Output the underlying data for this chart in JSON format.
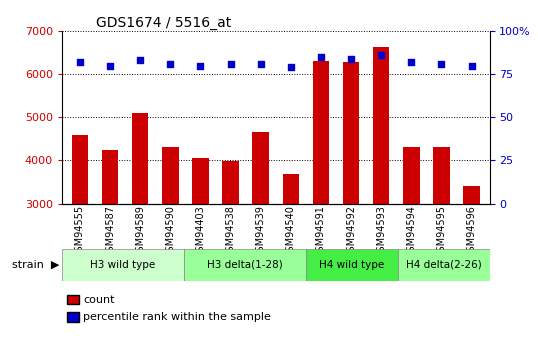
{
  "title": "GDS1674 / 5516_at",
  "samples": [
    "GSM94555",
    "GSM94587",
    "GSM94589",
    "GSM94590",
    "GSM94403",
    "GSM94538",
    "GSM94539",
    "GSM94540",
    "GSM94591",
    "GSM94592",
    "GSM94593",
    "GSM94594",
    "GSM94595",
    "GSM94596"
  ],
  "counts": [
    4600,
    4250,
    5100,
    4300,
    4050,
    3980,
    4650,
    3680,
    6300,
    6280,
    6620,
    4320,
    4320,
    3400
  ],
  "percentile_ranks": [
    82,
    80,
    83,
    81,
    80,
    81,
    81,
    79,
    85,
    84,
    86,
    82,
    81,
    80
  ],
  "ylim_left": [
    3000,
    7000
  ],
  "ylim_right": [
    0,
    100
  ],
  "yticks_left": [
    3000,
    4000,
    5000,
    6000,
    7000
  ],
  "yticks_right": [
    0,
    25,
    50,
    75,
    100
  ],
  "bar_color": "#cc0000",
  "dot_color": "#0000cc",
  "groups": [
    {
      "label": "H3 wild type",
      "indices": [
        0,
        1,
        2,
        3
      ],
      "color": "#ccffcc"
    },
    {
      "label": "H3 delta(1-28)",
      "indices": [
        4,
        5,
        6,
        7
      ],
      "color": "#99ff99"
    },
    {
      "label": "H4 wild type",
      "indices": [
        8,
        9,
        10
      ],
      "color": "#44ee44"
    },
    {
      "label": "H4 delta(2-26)",
      "indices": [
        11,
        12,
        13
      ],
      "color": "#99ff99"
    }
  ],
  "strain_label": "strain",
  "legend_count_label": "count",
  "legend_pct_label": "percentile rank within the sample",
  "background_color": "#ffffff",
  "plot_bg_color": "#ffffff",
  "grid_color": "#000000",
  "tick_color_left": "#cc0000",
  "tick_color_right": "#0000cc"
}
